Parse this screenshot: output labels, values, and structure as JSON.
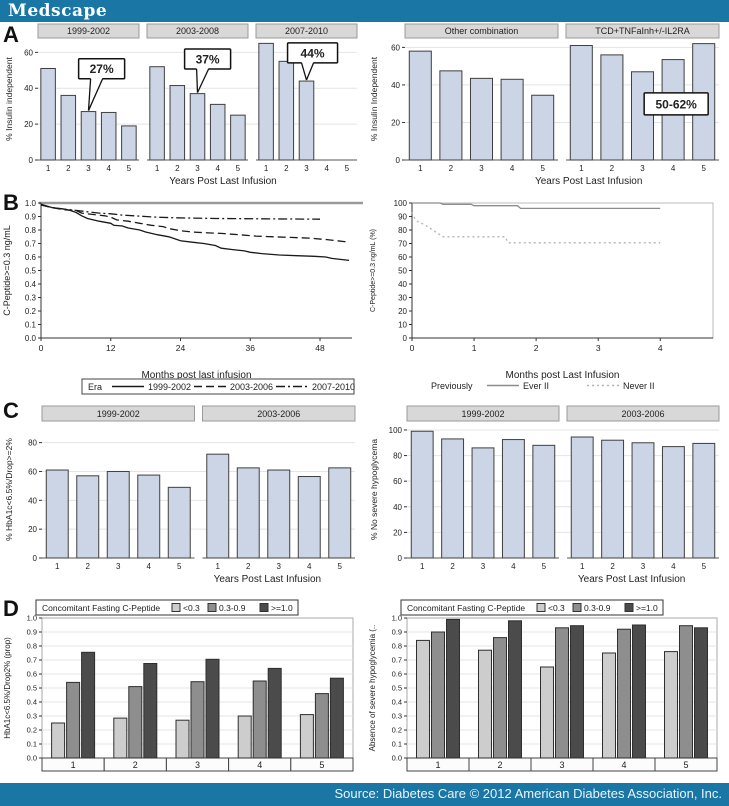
{
  "header": {
    "logo": "Medscape"
  },
  "footer": {
    "source": "Source: Diabetes Care © 2012 American Diabetes Association, Inc."
  },
  "panels": [
    {
      "letter": "A"
    },
    {
      "letter": "B"
    },
    {
      "letter": "C"
    },
    {
      "letter": "D"
    }
  ],
  "colors": {
    "brand_blue": "#1a76a4",
    "bar_fill": "#ccd5e5",
    "bar_border": "#3f3f3f",
    "strip_fill": "#d8d8d8",
    "strip_border": "#9a9a9a",
    "grid": "#e4e4e4",
    "d_series": [
      "#cdcdcd",
      "#8e8e8e",
      "#4b4b4b"
    ]
  },
  "chart_data": [
    {
      "id": "a_left",
      "type": "bar",
      "ylabel": "% Insulin independent",
      "xlabel": "Years Post Last Infusion",
      "ylim": [
        0,
        68
      ],
      "yticks": [
        0,
        20,
        40,
        60
      ],
      "categories": [
        "1",
        "2",
        "3",
        "4",
        "5"
      ],
      "groups": [
        {
          "label": "1999-2002",
          "values": [
            51,
            36,
            27,
            26.5,
            19
          ]
        },
        {
          "label": "2003-2008",
          "values": [
            52,
            41.5,
            37,
            31,
            25
          ]
        },
        {
          "label": "2007-2010",
          "values": [
            65,
            55,
            44,
            null,
            null
          ]
        }
      ],
      "callouts": [
        {
          "text": "27%",
          "group": 0,
          "category": 2
        },
        {
          "text": "37%",
          "group": 1,
          "category": 2
        },
        {
          "text": "44%",
          "group": 2,
          "category": 2
        }
      ]
    },
    {
      "id": "a_right",
      "type": "bar",
      "ylabel": "% Insulin Independent",
      "xlabel": "Years Post Last Infusion",
      "ylim": [
        0,
        65
      ],
      "yticks": [
        0,
        20,
        40,
        60
      ],
      "categories": [
        "1",
        "2",
        "3",
        "4",
        "5"
      ],
      "groups": [
        {
          "label": "Other combination",
          "values": [
            58,
            47.5,
            43.5,
            43,
            34.5
          ]
        },
        {
          "label": "TCD+TNFaInh+/-IL2RA",
          "values": [
            61,
            56,
            47,
            53.5,
            62
          ]
        }
      ],
      "callouts": [
        {
          "text": "50-62%",
          "group": 1,
          "category": 2
        }
      ]
    },
    {
      "id": "b_left",
      "type": "line",
      "ylabel": "C-Peptide>=0.3 ng/mL",
      "xlabel": "Months post last infusion",
      "ylim": [
        0,
        1
      ],
      "yticks": [
        "0.0",
        "0.1",
        "0.2",
        "0.3",
        "0.4",
        "0.5",
        "0.6",
        "0.7",
        "0.8",
        "0.9",
        "1.0"
      ],
      "xlim": [
        0,
        53.5
      ],
      "xticks": [
        0,
        12,
        24,
        36,
        48
      ],
      "legend": {
        "title": "Era",
        "boxed": true,
        "items": [
          "1999-2002",
          "2003-2006",
          "2007-2010"
        ]
      },
      "series": [
        {
          "name": "1999-2002",
          "dash": "solid",
          "color": "#1a1a1a",
          "points": [
            [
              0,
              0.99
            ],
            [
              2,
              0.965
            ],
            [
              4,
              0.955
            ],
            [
              5,
              0.945
            ],
            [
              6,
              0.93
            ],
            [
              7,
              0.905
            ],
            [
              8,
              0.885
            ],
            [
              10,
              0.865
            ],
            [
              12,
              0.85
            ],
            [
              12.5,
              0.835
            ],
            [
              14,
              0.83
            ],
            [
              15,
              0.815
            ],
            [
              17,
              0.8
            ],
            [
              18,
              0.785
            ],
            [
              20,
              0.765
            ],
            [
              22,
              0.75
            ],
            [
              23,
              0.735
            ],
            [
              24,
              0.72
            ],
            [
              26,
              0.71
            ],
            [
              28,
              0.7
            ],
            [
              30,
              0.685
            ],
            [
              31,
              0.665
            ],
            [
              33,
              0.655
            ],
            [
              35,
              0.645
            ],
            [
              36,
              0.635
            ],
            [
              38,
              0.625
            ],
            [
              41,
              0.615
            ],
            [
              44,
              0.61
            ],
            [
              47,
              0.605
            ],
            [
              49,
              0.6
            ],
            [
              50,
              0.59
            ],
            [
              53,
              0.575
            ]
          ]
        },
        {
          "name": "2003-2006",
          "dash": "dashed",
          "color": "#1a1a1a",
          "points": [
            [
              0,
              0.985
            ],
            [
              2,
              0.965
            ],
            [
              4,
              0.95
            ],
            [
              6,
              0.945
            ],
            [
              7,
              0.925
            ],
            [
              9,
              0.915
            ],
            [
              11,
              0.905
            ],
            [
              12,
              0.895
            ],
            [
              13,
              0.875
            ],
            [
              15,
              0.865
            ],
            [
              17,
              0.85
            ],
            [
              19,
              0.835
            ],
            [
              21,
              0.825
            ],
            [
              22,
              0.81
            ],
            [
              24,
              0.795
            ],
            [
              26,
              0.785
            ],
            [
              28,
              0.78
            ],
            [
              31,
              0.775
            ],
            [
              34,
              0.765
            ],
            [
              37,
              0.755
            ],
            [
              40,
              0.75
            ],
            [
              43,
              0.745
            ],
            [
              46,
              0.74
            ],
            [
              49,
              0.73
            ],
            [
              51,
              0.72
            ],
            [
              53,
              0.71
            ]
          ]
        },
        {
          "name": "2007-2010",
          "dash": "dashdot",
          "color": "#1a1a1a",
          "points": [
            [
              0,
              0.985
            ],
            [
              2,
              0.965
            ],
            [
              4,
              0.955
            ],
            [
              6,
              0.945
            ],
            [
              8,
              0.935
            ],
            [
              10,
              0.925
            ],
            [
              12,
              0.92
            ],
            [
              14,
              0.91
            ],
            [
              16,
              0.905
            ],
            [
              18,
              0.9
            ],
            [
              20,
              0.895
            ],
            [
              23,
              0.89
            ],
            [
              26,
              0.888
            ],
            [
              30,
              0.885
            ],
            [
              48,
              0.88
            ]
          ]
        }
      ]
    },
    {
      "id": "b_right",
      "type": "line",
      "ylabel": "C-Peptide>=0.3 ng/mL (%)",
      "xlabel": "Months post Last Infusion",
      "ylim": [
        0,
        100
      ],
      "yticks": [
        0,
        10,
        20,
        30,
        40,
        50,
        60,
        70,
        80,
        90,
        100
      ],
      "xlim": [
        0,
        4.85
      ],
      "xticks": [
        0,
        1,
        2,
        3,
        4
      ],
      "legend": {
        "title": "Previously",
        "boxed": false,
        "items": [
          "Ever II",
          "Never II"
        ]
      },
      "series": [
        {
          "name": "Ever II",
          "dash": "solid",
          "color": "#8c8c8c",
          "points": [
            [
              0,
              100
            ],
            [
              0.45,
              100
            ],
            [
              0.5,
              99
            ],
            [
              0.95,
              99
            ],
            [
              1.0,
              98
            ],
            [
              1.7,
              98
            ],
            [
              1.75,
              96
            ],
            [
              4,
              96
            ]
          ]
        },
        {
          "name": "Never II",
          "dash": "dotted",
          "color": "#b3b3b3",
          "points": [
            [
              0,
              93
            ],
            [
              0.05,
              88
            ],
            [
              0.1,
              86
            ],
            [
              0.2,
              84
            ],
            [
              0.3,
              81
            ],
            [
              0.4,
              78
            ],
            [
              0.5,
              75
            ],
            [
              1.5,
              75
            ],
            [
              1.55,
              70.5
            ],
            [
              4,
              70.5
            ]
          ]
        }
      ]
    },
    {
      "id": "c_left",
      "type": "bar",
      "ylabel": "% HbA1c<6.5%/Drop>=2%",
      "xlabel": "Years Post Last Infusion",
      "ylim": [
        0,
        95
      ],
      "yticks": [
        0,
        20,
        40,
        60,
        80
      ],
      "categories": [
        "1",
        "2",
        "3",
        "4",
        "5"
      ],
      "groups": [
        {
          "label": "1999-2002",
          "values": [
            61,
            57,
            60,
            57.5,
            49
          ]
        },
        {
          "label": "2003-2006",
          "values": [
            72,
            62.5,
            61,
            56.5,
            62.5
          ]
        }
      ],
      "callouts": []
    },
    {
      "id": "c_right",
      "type": "bar",
      "ylabel": "% No severe hypoglycema",
      "xlabel": "Years Post Last Infusion",
      "ylim": [
        0,
        107
      ],
      "yticks": [
        0,
        20,
        40,
        60,
        80,
        100
      ],
      "categories": [
        "1",
        "2",
        "3",
        "4",
        "5"
      ],
      "groups": [
        {
          "label": "1999-2002",
          "values": [
            99,
            93,
            86,
            92.5,
            88
          ]
        },
        {
          "label": "2003-2006",
          "values": [
            94.5,
            92,
            90,
            87,
            89.5
          ]
        }
      ],
      "callouts": []
    },
    {
      "id": "d_left",
      "type": "cluster",
      "ylabel": "HbA1c<6.5%/Drop2% (prop)",
      "ylim": [
        0,
        1
      ],
      "yticks": [
        "0.0",
        "0.1",
        "0.2",
        "0.3",
        "0.4",
        "0.5",
        "0.6",
        "0.7",
        "0.8",
        "0.9",
        "1.0"
      ],
      "categories": [
        "1",
        "2",
        "3",
        "4",
        "5"
      ],
      "legend": {
        "title": "Concomitant Fasting C-Peptide",
        "items": [
          "<0.3",
          "0.3-0.9",
          ">=1.0"
        ]
      },
      "series": [
        {
          "name": "<0.3",
          "values": [
            0.25,
            0.285,
            0.27,
            0.3,
            0.31
          ]
        },
        {
          "name": "0.3-0.9",
          "values": [
            0.54,
            0.51,
            0.545,
            0.55,
            0.46
          ]
        },
        {
          "name": ">=1.0",
          "values": [
            0.755,
            0.675,
            0.705,
            0.64,
            0.57
          ]
        }
      ]
    },
    {
      "id": "d_right",
      "type": "cluster",
      "ylabel": "Absence of severe hypoglycemia (..",
      "ylim": [
        0,
        1
      ],
      "yticks": [
        "0.0",
        "0.1",
        "0.2",
        "0.3",
        "0.4",
        "0.5",
        "0.6",
        "0.7",
        "0.8",
        "0.9",
        "1.0"
      ],
      "categories": [
        "1",
        "2",
        "3",
        "4",
        "5"
      ],
      "legend": {
        "title": "Concomitant Fasting C-Peptide",
        "items": [
          "<0.3",
          "0.3-0.9",
          ">=1.0"
        ]
      },
      "series": [
        {
          "name": "<0.3",
          "values": [
            0.84,
            0.77,
            0.65,
            0.75,
            0.76
          ]
        },
        {
          "name": "0.3-0.9",
          "values": [
            0.9,
            0.86,
            0.93,
            0.92,
            0.945
          ]
        },
        {
          "name": ">=1.0",
          "values": [
            0.99,
            0.98,
            0.945,
            0.95,
            0.93
          ]
        }
      ]
    }
  ]
}
